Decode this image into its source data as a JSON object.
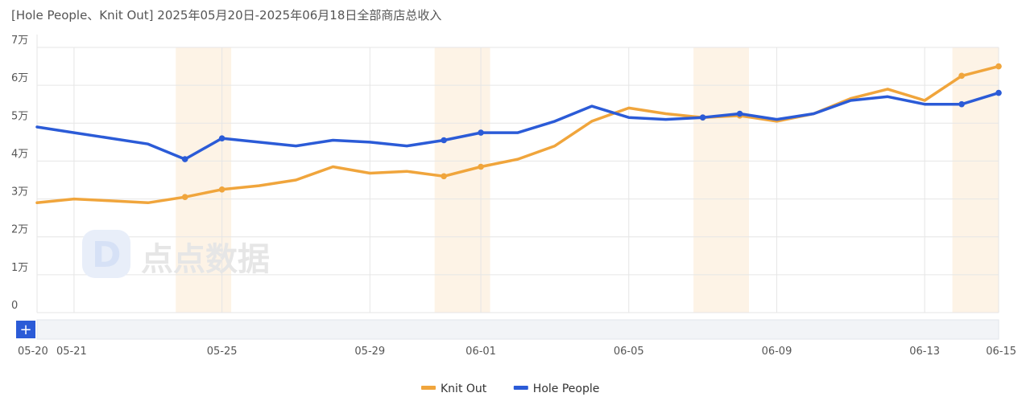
{
  "title": "[Hole People、Knit Out] 2025年05月20日-2025年06月18日全部商店总收入",
  "watermark": "点点数据",
  "chart_data": {
    "type": "line",
    "title": "[Hole People、Knit Out] 2025年05月20日-2025年06月18日全部商店总收入",
    "x": [
      "05-20",
      "05-21",
      "05-22",
      "05-23",
      "05-24",
      "05-25",
      "05-26",
      "05-27",
      "05-28",
      "05-29",
      "05-30",
      "05-31",
      "06-01",
      "06-02",
      "06-03",
      "06-04",
      "06-05",
      "06-06",
      "06-07",
      "06-08",
      "06-09",
      "06-10",
      "06-11",
      "06-12",
      "06-13",
      "06-14",
      "06-15"
    ],
    "x_tick_labels": [
      "05-20",
      "05-21",
      "05-25",
      "05-29",
      "06-01",
      "06-05",
      "06-09",
      "06-13",
      "06-15"
    ],
    "y_tick_labels": [
      "0",
      "1万",
      "2万",
      "3万",
      "4万",
      "5万",
      "6万",
      "7万"
    ],
    "ylim": [
      0,
      70000
    ],
    "grid": true,
    "legend_position": "bottom",
    "shaded_x": [
      "05-24",
      "05-25",
      "05-31",
      "06-01",
      "06-07",
      "06-08",
      "06-14",
      "06-15"
    ],
    "series": [
      {
        "name": "Knit Out",
        "color": "#f0a53c",
        "values": [
          29000,
          30000,
          29500,
          29000,
          30500,
          32500,
          33500,
          35000,
          38500,
          36800,
          37300,
          36000,
          38500,
          40500,
          44000,
          50500,
          54000,
          52500,
          51500,
          52000,
          50500,
          52500,
          56500,
          59000,
          56000,
          62500,
          65000
        ]
      },
      {
        "name": "Hole People",
        "color": "#2b5bd7",
        "values": [
          49000,
          47500,
          46000,
          44500,
          40500,
          46000,
          45000,
          44000,
          45500,
          45000,
          44000,
          45500,
          47500,
          47500,
          50500,
          54500,
          51500,
          51000,
          51500,
          52500,
          51000,
          52500,
          56000,
          57000,
          55000,
          55000,
          58000
        ]
      }
    ],
    "marked_points": [
      "05-24",
      "05-25",
      "05-31",
      "06-01",
      "06-07",
      "06-08",
      "06-14",
      "06-15"
    ]
  },
  "zoom": {
    "add_label": "+"
  }
}
